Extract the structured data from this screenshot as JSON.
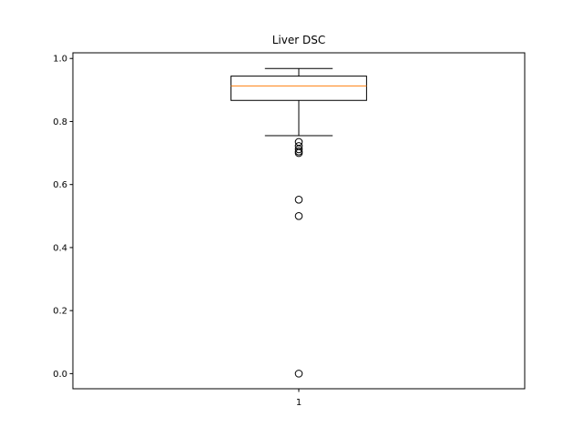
{
  "chart_data": {
    "type": "box",
    "title": "Liver DSC",
    "xlabel": "",
    "ylabel": "",
    "categories": [
      "1"
    ],
    "ylim": [
      -0.048,
      1.018
    ],
    "yticks": [
      "0.0",
      "0.2",
      "0.4",
      "0.6",
      "0.8",
      "1.0"
    ],
    "grid": false,
    "boxes": [
      {
        "category": "1",
        "whisker_low": 0.755,
        "q1": 0.867,
        "median": 0.913,
        "q3": 0.944,
        "whisker_high": 0.968,
        "outliers": [
          0.735,
          0.722,
          0.712,
          0.705,
          0.7,
          0.552,
          0.5,
          0.0
        ]
      }
    ],
    "colors": {
      "box": "#000000",
      "median": "#ff7f0e",
      "flier": "#000000"
    }
  }
}
